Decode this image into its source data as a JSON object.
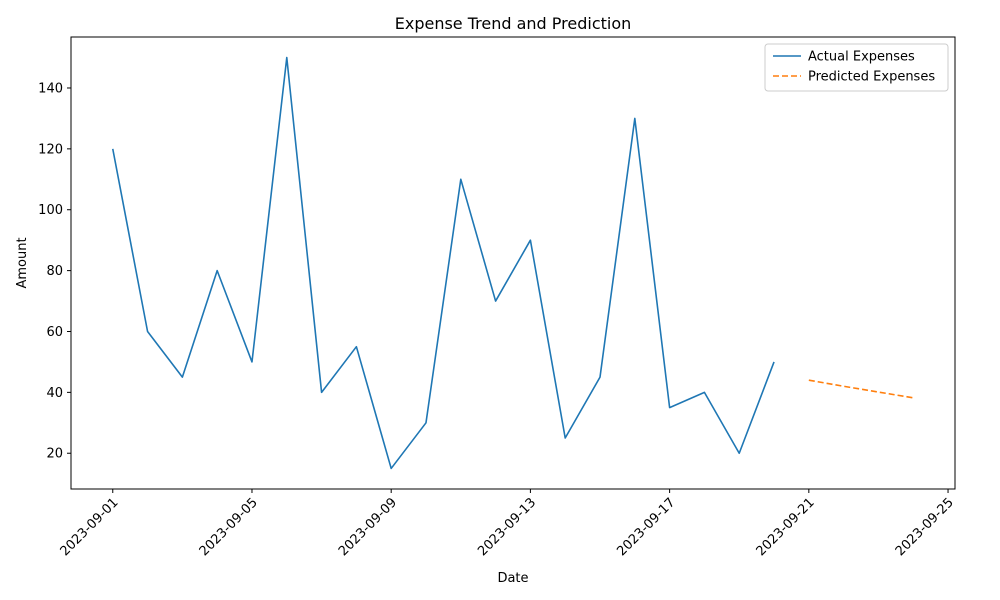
{
  "chart_data": {
    "type": "line",
    "title": "Expense Trend and Prediction",
    "xlabel": "Date",
    "ylabel": "Amount",
    "xlim": [
      "2023-08-30T19:12",
      "2023-09-25T04:48"
    ],
    "ylim": [
      8.25,
      156.75
    ],
    "x_ticks": [
      "2023-09-01",
      "2023-09-05",
      "2023-09-09",
      "2023-09-13",
      "2023-09-17",
      "2023-09-21",
      "2023-09-25"
    ],
    "y_ticks": [
      20,
      40,
      60,
      80,
      100,
      120,
      140
    ],
    "legend_position": "top-right",
    "grid": false,
    "series": [
      {
        "name": "Actual Expenses",
        "color": "#1f77b4",
        "style": "solid",
        "x": [
          "2023-09-01",
          "2023-09-02",
          "2023-09-03",
          "2023-09-04",
          "2023-09-05",
          "2023-09-06",
          "2023-09-07",
          "2023-09-08",
          "2023-09-09",
          "2023-09-10",
          "2023-09-11",
          "2023-09-12",
          "2023-09-13",
          "2023-09-14",
          "2023-09-15",
          "2023-09-16",
          "2023-09-17",
          "2023-09-18",
          "2023-09-19",
          "2023-09-20"
        ],
        "values": [
          120,
          60,
          45,
          80,
          50,
          150,
          40,
          55,
          15,
          30,
          110,
          70,
          90,
          25,
          45,
          130,
          35,
          40,
          20,
          50
        ]
      },
      {
        "name": "Predicted Expenses",
        "color": "#ff7f0e",
        "style": "dashed",
        "x": [
          "2023-09-21",
          "2023-09-22",
          "2023-09-23",
          "2023-09-24"
        ],
        "values": [
          44,
          42,
          40.1,
          38.2
        ]
      }
    ]
  }
}
